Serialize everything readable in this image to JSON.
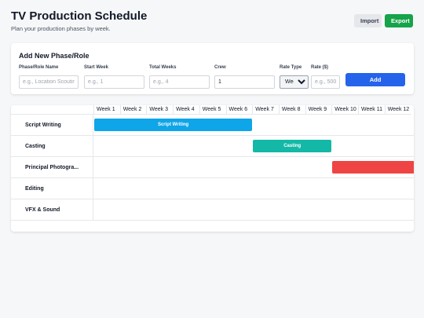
{
  "header": {
    "title": "TV Production Schedule",
    "subtitle": "Plan your production phases by week.",
    "import_label": "Import",
    "export_label": "Export"
  },
  "form": {
    "title": "Add New Phase/Role",
    "fields": {
      "name": {
        "label": "Phase/Role Name",
        "placeholder": "e.g., Location Scouting",
        "value": ""
      },
      "start": {
        "label": "Start Week",
        "placeholder": "e.g., 1",
        "value": ""
      },
      "total": {
        "label": "Total Weeks",
        "placeholder": "e.g., 4",
        "value": ""
      },
      "crew": {
        "label": "Crew",
        "placeholder": "",
        "value": "1"
      },
      "rate_type": {
        "label": "Rate Type",
        "selected": "Weekly"
      },
      "rate": {
        "label": "Rate ($)",
        "placeholder": "e.g., 500",
        "value": ""
      }
    },
    "add_label": "Add"
  },
  "schedule": {
    "weeks": [
      "Week 1",
      "Week 2",
      "Week 3",
      "Week 4",
      "Week 5",
      "Week 6",
      "Week 7",
      "Week 8",
      "Week 9",
      "Week 10",
      "Week 11",
      "Week 12"
    ],
    "rows": [
      {
        "label": "Script Writing",
        "bar": {
          "text": "Script Writing",
          "start": 1,
          "weeks": 6,
          "color": "#0ea5e9"
        }
      },
      {
        "label": "Casting",
        "bar": {
          "text": "Casting",
          "start": 7,
          "weeks": 3,
          "color": "#14b8a6"
        }
      },
      {
        "label": "Principal Photogra...",
        "bar": {
          "text": "",
          "start": 10,
          "weeks": 4,
          "color": "#ef4444"
        }
      },
      {
        "label": "Editing",
        "bar": null
      },
      {
        "label": "VFX & Sound",
        "bar": null
      }
    ]
  }
}
